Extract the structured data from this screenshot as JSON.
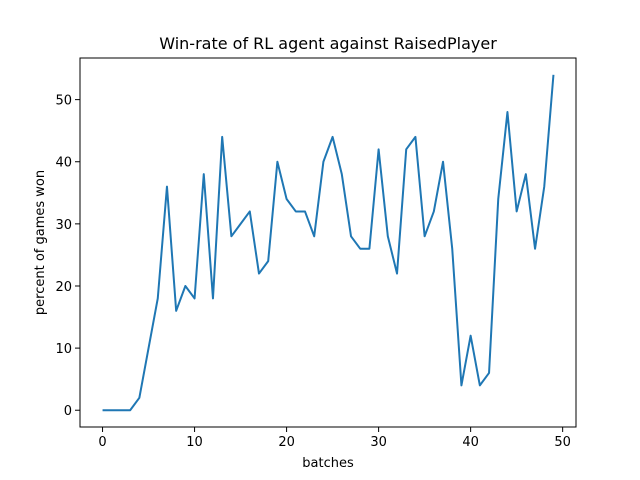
{
  "chart_data": {
    "type": "line",
    "title": "Win-rate of RL agent against RaisedPlayer",
    "xlabel": "batches",
    "ylabel": "percent of games won",
    "xlim": [
      -2.45,
      51.45
    ],
    "ylim": [
      -2.7,
      56.7
    ],
    "xticks": [
      0,
      10,
      20,
      30,
      40,
      50
    ],
    "yticks": [
      0,
      10,
      20,
      30,
      40,
      50
    ],
    "grid": false,
    "legend": "none",
    "series": [
      {
        "color": "#1f77b4",
        "x": [
          0,
          1,
          2,
          3,
          4,
          5,
          6,
          7,
          8,
          9,
          10,
          11,
          12,
          13,
          14,
          15,
          16,
          17,
          18,
          19,
          20,
          21,
          22,
          23,
          24,
          25,
          26,
          27,
          28,
          29,
          30,
          31,
          32,
          33,
          34,
          35,
          36,
          37,
          38,
          39,
          40,
          41,
          42,
          43,
          44,
          45,
          46,
          47,
          48,
          49
        ],
        "y": [
          0,
          0,
          0,
          0,
          2,
          10,
          18,
          36,
          16,
          20,
          18,
          38,
          18,
          44,
          28,
          30,
          32,
          22,
          24,
          40,
          34,
          32,
          32,
          28,
          40,
          44,
          38,
          28,
          26,
          26,
          42,
          28,
          22,
          42,
          44,
          28,
          32,
          40,
          26,
          4,
          12,
          4,
          6,
          34,
          48,
          32,
          38,
          26,
          36,
          54
        ]
      }
    ]
  }
}
